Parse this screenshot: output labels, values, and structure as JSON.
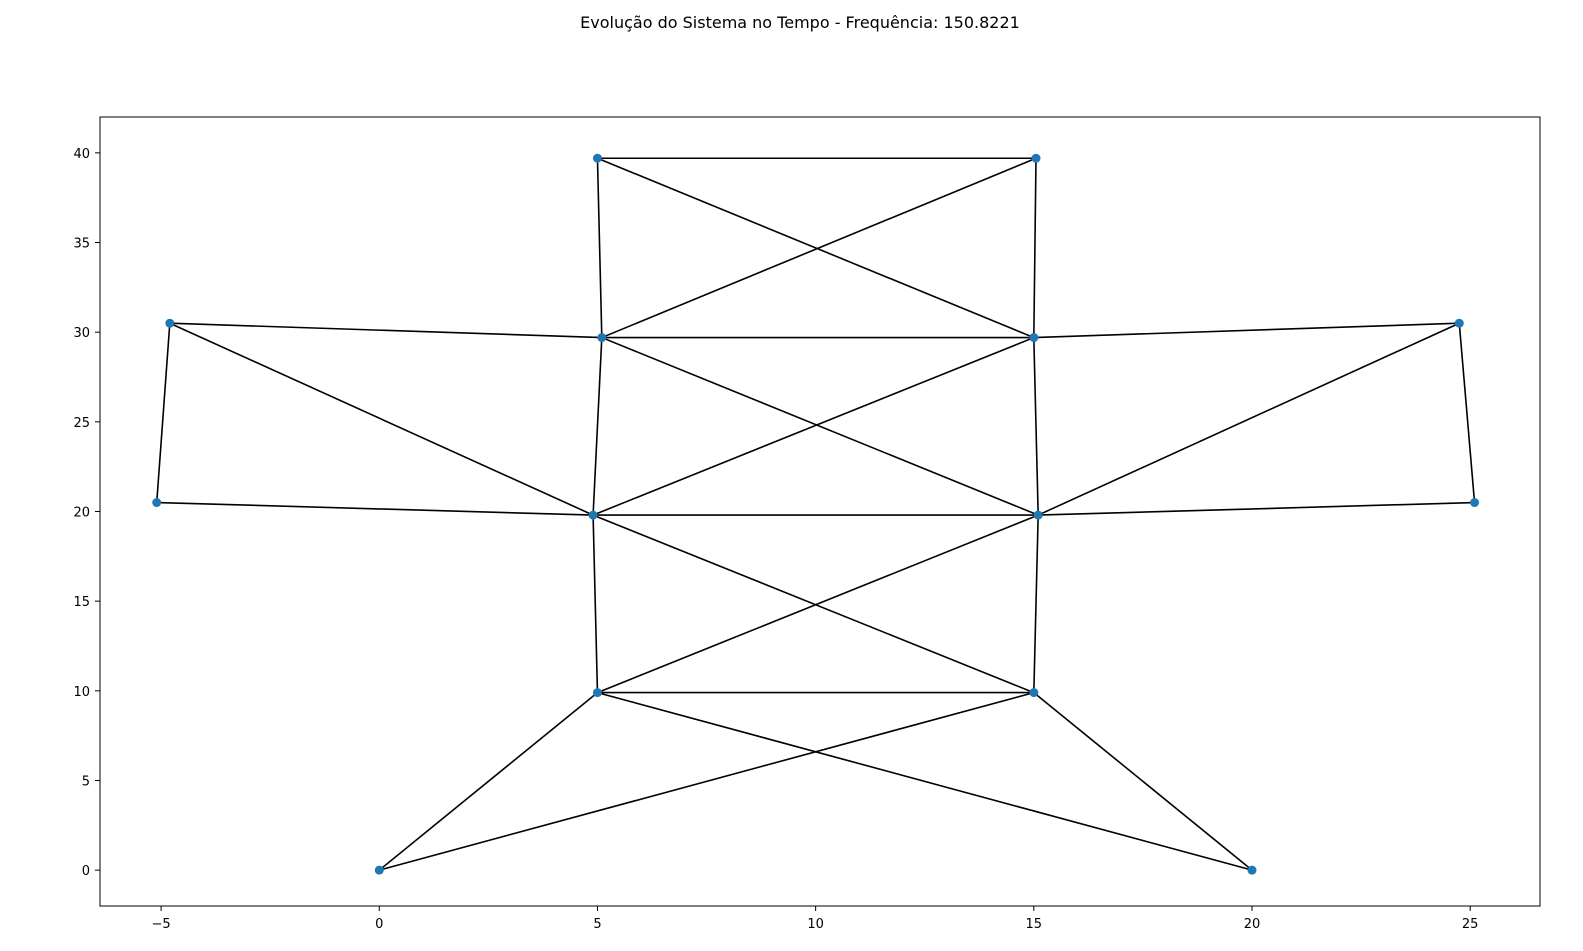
{
  "chart_data": {
    "type": "scatter",
    "title": "Evolução do Sistema no Tempo - Frequência: 150.8221",
    "xlabel": "",
    "ylabel": "",
    "xlim": [
      -6.4,
      26.6
    ],
    "ylim": [
      -2.0,
      42.0
    ],
    "x_ticks": [
      -5,
      0,
      5,
      10,
      15,
      20,
      25
    ],
    "x_tick_labels": [
      "−5",
      "0",
      "5",
      "10",
      "15",
      "20",
      "25"
    ],
    "y_ticks": [
      0,
      5,
      10,
      15,
      20,
      25,
      30,
      35,
      40
    ],
    "y_tick_labels": [
      "0",
      "5",
      "10",
      "15",
      "20",
      "25",
      "30",
      "35",
      "40"
    ],
    "grid": false,
    "colors": {
      "node": "#1f77b4",
      "edge": "#000000",
      "axes": "#000000"
    },
    "nodes": [
      {
        "x": 0.0,
        "y": 0.0
      },
      {
        "x": 20.0,
        "y": 0.0
      },
      {
        "x": 5.0,
        "y": 9.9
      },
      {
        "x": 15.0,
        "y": 9.9
      },
      {
        "x": 4.9,
        "y": 19.8
      },
      {
        "x": 15.1,
        "y": 19.8
      },
      {
        "x": 5.1,
        "y": 29.7
      },
      {
        "x": 15.0,
        "y": 29.7
      },
      {
        "x": 5.0,
        "y": 39.7
      },
      {
        "x": 15.05,
        "y": 39.7
      },
      {
        "x": -5.1,
        "y": 20.5
      },
      {
        "x": -4.8,
        "y": 30.5
      },
      {
        "x": 25.1,
        "y": 20.5
      },
      {
        "x": 24.75,
        "y": 30.5
      }
    ],
    "edges": [
      [
        0,
        2
      ],
      [
        0,
        3
      ],
      [
        1,
        2
      ],
      [
        1,
        3
      ],
      [
        2,
        3
      ],
      [
        2,
        4
      ],
      [
        3,
        5
      ],
      [
        2,
        5
      ],
      [
        3,
        4
      ],
      [
        4,
        5
      ],
      [
        4,
        6
      ],
      [
        5,
        7
      ],
      [
        4,
        7
      ],
      [
        5,
        6
      ],
      [
        6,
        7
      ],
      [
        6,
        8
      ],
      [
        7,
        9
      ],
      [
        6,
        9
      ],
      [
        7,
        8
      ],
      [
        8,
        9
      ],
      [
        10,
        11
      ],
      [
        10,
        4
      ],
      [
        11,
        6
      ],
      [
        11,
        4
      ],
      [
        12,
        13
      ],
      [
        12,
        5
      ],
      [
        13,
        7
      ],
      [
        13,
        5
      ]
    ]
  }
}
